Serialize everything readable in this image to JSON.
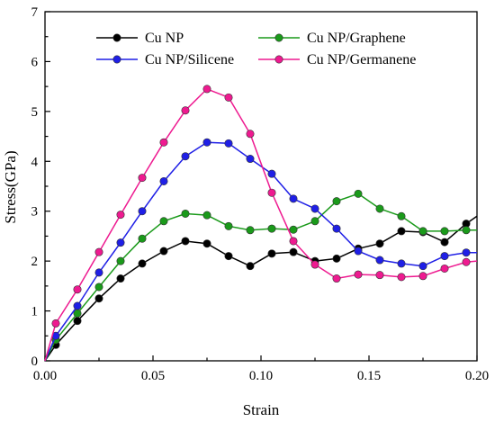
{
  "chart_data": {
    "type": "line",
    "title": "",
    "xlabel": "Strain",
    "ylabel": "Stress(GPa)",
    "xlim": [
      0,
      0.2
    ],
    "ylim": [
      0,
      7
    ],
    "xticks": [
      "0.00",
      "0.05",
      "0.10",
      "0.15",
      "0.20"
    ],
    "yticks": [
      "0",
      "1",
      "2",
      "3",
      "4",
      "5",
      "6",
      "7"
    ],
    "grid": false,
    "legend_position": "top",
    "series": [
      {
        "name": "Cu NP",
        "color": "#000000",
        "x": [
          0,
          0.005,
          0.015,
          0.025,
          0.035,
          0.045,
          0.055,
          0.065,
          0.075,
          0.085,
          0.095,
          0.105,
          0.115,
          0.125,
          0.135,
          0.145,
          0.155,
          0.165,
          0.175,
          0.185,
          0.195,
          0.2
        ],
        "y": [
          0,
          0.32,
          0.8,
          1.25,
          1.65,
          1.95,
          2.2,
          2.4,
          2.35,
          2.1,
          1.9,
          2.15,
          2.18,
          2.0,
          2.05,
          2.25,
          2.35,
          2.6,
          2.58,
          2.38,
          2.75,
          2.9
        ]
      },
      {
        "name": "Cu NP/Graphene",
        "color": "#1a9a1a",
        "x": [
          0,
          0.005,
          0.015,
          0.025,
          0.035,
          0.045,
          0.055,
          0.065,
          0.075,
          0.085,
          0.095,
          0.105,
          0.115,
          0.125,
          0.135,
          0.145,
          0.155,
          0.165,
          0.175,
          0.185,
          0.195,
          0.2
        ],
        "y": [
          0,
          0.42,
          0.95,
          1.48,
          2.0,
          2.45,
          2.8,
          2.95,
          2.92,
          2.7,
          2.62,
          2.65,
          2.63,
          2.8,
          3.2,
          3.35,
          3.05,
          2.9,
          2.6,
          2.6,
          2.62,
          2.62
        ]
      },
      {
        "name": "Cu NP/Silicene",
        "color": "#1f1fe6",
        "x": [
          0,
          0.005,
          0.015,
          0.025,
          0.035,
          0.045,
          0.055,
          0.065,
          0.075,
          0.085,
          0.095,
          0.105,
          0.115,
          0.125,
          0.135,
          0.145,
          0.155,
          0.165,
          0.175,
          0.185,
          0.195,
          0.2
        ],
        "y": [
          0,
          0.5,
          1.1,
          1.77,
          2.37,
          3.0,
          3.6,
          4.1,
          4.38,
          4.36,
          4.05,
          3.75,
          3.25,
          3.05,
          2.65,
          2.2,
          2.02,
          1.95,
          1.9,
          2.1,
          2.17,
          2.17
        ]
      },
      {
        "name": "Cu NP/Germanene",
        "color": "#ee1a90",
        "x": [
          0,
          0.005,
          0.015,
          0.025,
          0.035,
          0.045,
          0.055,
          0.065,
          0.075,
          0.085,
          0.095,
          0.105,
          0.115,
          0.125,
          0.135,
          0.145,
          0.155,
          0.165,
          0.175,
          0.185,
          0.195,
          0.2
        ],
        "y": [
          0,
          0.75,
          1.43,
          2.18,
          2.93,
          3.67,
          4.38,
          5.02,
          5.45,
          5.28,
          4.55,
          3.37,
          2.4,
          1.93,
          1.65,
          1.73,
          1.72,
          1.68,
          1.7,
          1.85,
          1.98,
          2.0
        ]
      }
    ]
  }
}
